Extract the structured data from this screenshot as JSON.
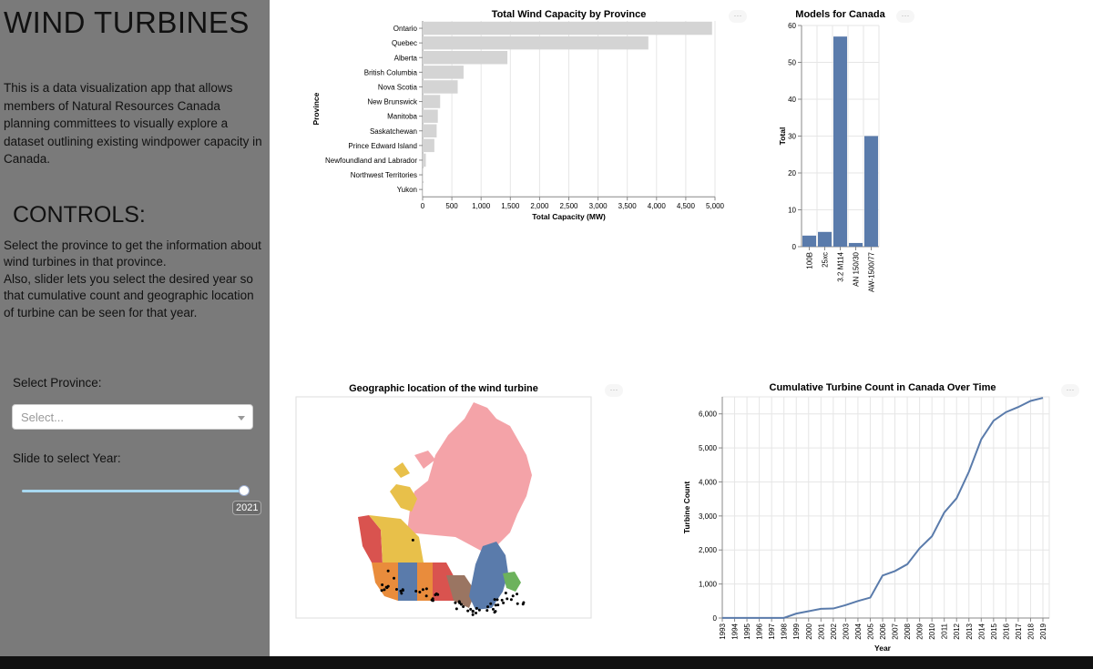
{
  "sidebar": {
    "title": "WIND TURBINES",
    "description": "This is a data visualization app that allows members of Natural Resources Canada planning committees to visually explore a dataset outlining existing windpower capacity in Canada.",
    "controls_title": "CONTROLS:",
    "controls_line1": "Select the province to get the information about wind turbines in that province.",
    "controls_line2": "Also, slider lets you select the desired year so that cumulative count and geographic location of turbine can be seen for that year.",
    "province_label": "Select Province:",
    "province_placeholder": "Select...",
    "year_label": "Slide to select Year:",
    "year_value": "2021",
    "year_fraction": 1.0
  },
  "menu_dots": "···",
  "chart_data": [
    {
      "type": "bar",
      "orientation": "horizontal",
      "title": "Total Wind Capacity by Province",
      "xlabel": "Total Capacity (MW)",
      "ylabel": "Province",
      "xlim": [
        0,
        5000
      ],
      "xticks": [
        0,
        500,
        1000,
        1500,
        2000,
        2500,
        3000,
        3500,
        4000,
        4500,
        5000
      ],
      "xtick_labels": [
        "0",
        "500",
        "1,000",
        "1,500",
        "2,000",
        "2,500",
        "3,000",
        "3,500",
        "4,000",
        "4,500",
        "5,000"
      ],
      "grid": true,
      "color": "#d4d4d4",
      "categories": [
        "Ontario",
        "Quebec",
        "Alberta",
        "British Columbia",
        "Nova Scotia",
        "New Brunswick",
        "Manitoba",
        "Saskatchewan",
        "Prince Edward Island",
        "Newfoundland and Labrador",
        "Northwest Territories",
        "Yukon"
      ],
      "values": [
        4950,
        3860,
        1450,
        700,
        600,
        300,
        260,
        240,
        200,
        55,
        9,
        1
      ]
    },
    {
      "type": "bar",
      "title": "Models for Canada",
      "xlabel": "",
      "ylabel": "Total",
      "ylim": [
        0,
        60
      ],
      "yticks": [
        0,
        10,
        20,
        30,
        40,
        50,
        60
      ],
      "grid": true,
      "color": "#5a7bab",
      "categories": [
        "100B",
        "25xc",
        "3.2 M114",
        "AN 150/30",
        "AW-1500/77"
      ],
      "values": [
        3,
        4,
        57,
        1,
        30
      ]
    },
    {
      "type": "line",
      "title": "Cumulative Turbine Count in Canada Over Time",
      "xlabel": "Year",
      "ylabel": "Turbine Count",
      "ylim": [
        0,
        6500
      ],
      "yticks": [
        0,
        1000,
        2000,
        3000,
        4000,
        5000,
        6000
      ],
      "ytick_labels": [
        "0",
        "1,000",
        "2,000",
        "3,000",
        "4,000",
        "5,000",
        "6,000"
      ],
      "grid": true,
      "color": "#5a7bab",
      "x": [
        "1993",
        "1994",
        "1995",
        "1996",
        "1997",
        "1998",
        "1999",
        "2000",
        "2001",
        "2002",
        "2003",
        "2004",
        "2005",
        "2006",
        "2007",
        "2008",
        "2009",
        "2010",
        "2011",
        "2012",
        "2013",
        "2014",
        "2015",
        "2016",
        "2017",
        "2018",
        "2019"
      ],
      "y": [
        5,
        5,
        5,
        5,
        5,
        5,
        130,
        200,
        270,
        280,
        380,
        500,
        600,
        1250,
        1380,
        1580,
        2050,
        2400,
        3100,
        3520,
        4300,
        5250,
        5800,
        6050,
        6200,
        6380,
        6470
      ]
    }
  ],
  "map": {
    "title": "Geographic location of the wind turbine",
    "province_colors": {
      "north": "#f4a3a8",
      "yukon": "#e8c04a",
      "british_columbia": "#d9534f",
      "alberta": "#e8c04a",
      "saskatchewan": "#e98c3c",
      "manitoba": "#5a7bab",
      "ontario": "#d9534f",
      "quebec_south": "#9a7562",
      "quebec": "#5a7bab",
      "atlantic": "#6cb25c"
    }
  }
}
